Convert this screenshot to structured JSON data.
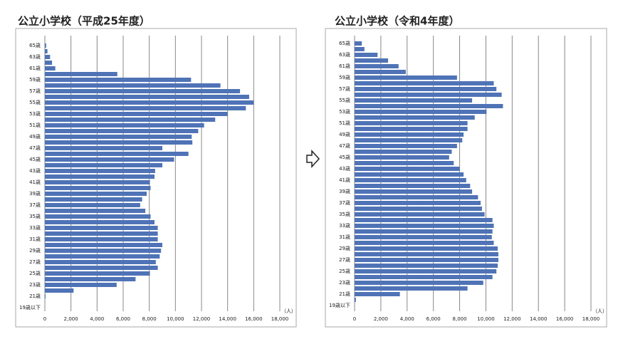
{
  "chart_data": [
    {
      "type": "bar",
      "orientation": "horizontal",
      "title": "公立小学校（平成25年度）",
      "unit_label": "（人）",
      "color": "#4f73b6",
      "grid": true,
      "categories": [
        "65歳",
        null,
        "63歳",
        null,
        "61歳",
        null,
        "59歳",
        null,
        "57歳",
        null,
        "55歳",
        null,
        "53歳",
        null,
        "51歳",
        null,
        "49歳",
        null,
        "47歳",
        null,
        "45歳",
        null,
        "43歳",
        null,
        "41歳",
        null,
        "39歳",
        null,
        "37歳",
        null,
        "35歳",
        null,
        "33歳",
        null,
        "31歳",
        null,
        "29歳",
        null,
        "27歳",
        null,
        "25歳",
        null,
        "23歳",
        null,
        "21歳",
        null,
        "19歳以下"
      ],
      "values": [
        100,
        200,
        400,
        550,
        800,
        5550,
        11200,
        13450,
        14950,
        15650,
        16000,
        15400,
        14000,
        13050,
        12200,
        11750,
        11250,
        11300,
        9000,
        11000,
        9900,
        9000,
        8450,
        8400,
        8050,
        8100,
        7800,
        7450,
        7300,
        7700,
        8100,
        8400,
        8650,
        8650,
        8650,
        9000,
        8900,
        8800,
        8500,
        8650,
        8050,
        6950,
        5500,
        2200,
        50,
        0,
        0
      ],
      "xlim": [
        0,
        18000
      ],
      "xticks": [
        0,
        {
          "value": 2000,
          "label": "2,000"
        },
        {
          "value": 4000,
          "label": "4,000"
        },
        {
          "value": 6000,
          "label": "6,000"
        },
        {
          "value": 8000,
          "label": "8,000"
        },
        {
          "value": 10000,
          "label": "10,000"
        },
        {
          "value": 12000,
          "label": "12,000"
        },
        {
          "value": 14000,
          "label": "14,000"
        },
        {
          "value": 16000,
          "label": "16,000"
        },
        {
          "value": 18000,
          "label": "18,000"
        }
      ]
    },
    {
      "type": "bar",
      "orientation": "horizontal",
      "title": "公立小学校（令和4年度）",
      "unit_label": "（人）",
      "color": "#4f73b6",
      "grid": true,
      "categories": [
        "65歳",
        null,
        "63歳",
        null,
        "61歳",
        null,
        "59歳",
        null,
        "57歳",
        null,
        "55歳",
        null,
        "53歳",
        null,
        "51歳",
        null,
        "49歳",
        null,
        "47歳",
        null,
        "45歳",
        null,
        "43歳",
        null,
        "41歳",
        null,
        "39歳",
        null,
        "37歳",
        null,
        "35歳",
        null,
        "33歳",
        null,
        "31歳",
        null,
        "29歳",
        null,
        "27歳",
        null,
        "25歳",
        null,
        "23歳",
        null,
        "21歳",
        null,
        "19歳以下"
      ],
      "values": [
        550,
        750,
        1750,
        2550,
        3350,
        3900,
        7800,
        10600,
        10800,
        11200,
        8950,
        11300,
        10050,
        9150,
        8600,
        8600,
        8300,
        8200,
        7800,
        7400,
        7200,
        7550,
        8000,
        8300,
        8500,
        8800,
        8950,
        9400,
        9600,
        9700,
        9900,
        10500,
        10600,
        10500,
        10450,
        10600,
        10900,
        10950,
        10950,
        10900,
        10800,
        10500,
        9800,
        8600,
        3450,
        100,
        0
      ],
      "xlim": [
        0,
        18000
      ],
      "xticks": [
        0,
        {
          "value": 2000,
          "label": "2,000"
        },
        {
          "value": 4000,
          "label": "4,000"
        },
        {
          "value": 6000,
          "label": "6,000"
        },
        {
          "value": 8000,
          "label": "8,000"
        },
        {
          "value": 10000,
          "label": "10,000"
        },
        {
          "value": 12000,
          "label": "12,000"
        },
        {
          "value": 14000,
          "label": "14,000"
        },
        {
          "value": 16000,
          "label": "16,000"
        },
        {
          "value": 18000,
          "label": "18,000"
        }
      ]
    }
  ]
}
